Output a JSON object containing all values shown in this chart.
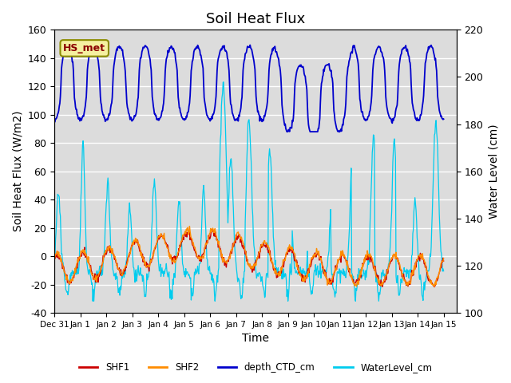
{
  "title": "Soil Heat Flux",
  "ylabel_left": "Soil Heat Flux (W/m2)",
  "ylabel_right": "Water Level (cm)",
  "xlabel": "Time",
  "ylim_left": [
    -40,
    160
  ],
  "ylim_right": [
    100,
    220
  ],
  "yticks_left": [
    -40,
    -20,
    0,
    20,
    40,
    60,
    80,
    100,
    120,
    140,
    160
  ],
  "yticks_right": [
    100,
    120,
    140,
    160,
    180,
    200,
    220
  ],
  "bg_color": "#dcdcdc",
  "annotation_text": "HS_met",
  "annotation_bg": "#f5f0a0",
  "annotation_edge": "#8b8b00",
  "annotation_text_color": "#8b0000",
  "colors": {
    "SHF1": "#cc0000",
    "SHF2": "#ff8c00",
    "depth_CTD_cm": "#0000cc",
    "WaterLevel_cm": "#00ccee"
  },
  "tick_labels": [
    "Dec 31",
    "Jan 1",
    "Jan 2",
    "Jan 3",
    "Jan 4",
    "Jan 5",
    "Jan 6",
    "Jan 7",
    "Jan 8",
    "Jan 9",
    "Jan 10",
    "Jan 11",
    "Jan 12",
    "Jan 13",
    "Jan 14",
    "Jan 15"
  ]
}
